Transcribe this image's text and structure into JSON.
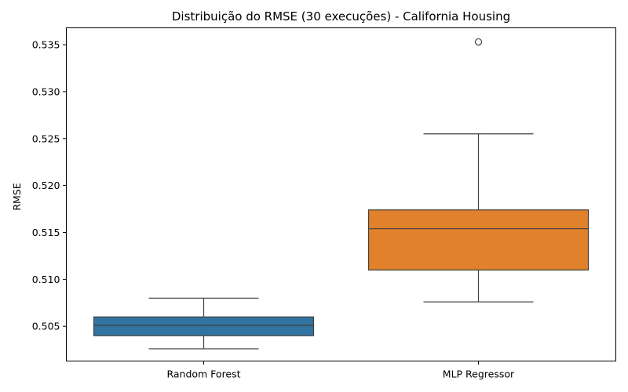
{
  "chart_data": {
    "type": "box",
    "title": "Distribuição do RMSE (30 execuções) - California Housing",
    "xlabel": "",
    "ylabel": "RMSE",
    "ylim": [
      0.5013,
      0.5368
    ],
    "yticks": [
      "0.505",
      "0.510",
      "0.515",
      "0.520",
      "0.525",
      "0.530",
      "0.535"
    ],
    "categories": [
      "Random Forest",
      "MLP Regressor"
    ],
    "boxes": [
      {
        "category": "Random Forest",
        "color": "#3274a1",
        "whisker_low": 0.5026,
        "q1": 0.504,
        "median": 0.5051,
        "q3": 0.506,
        "whisker_high": 0.508,
        "outliers": []
      },
      {
        "category": "MLP Regressor",
        "color": "#e1812c",
        "whisker_low": 0.5076,
        "q1": 0.511,
        "median": 0.5154,
        "q3": 0.5174,
        "whisker_high": 0.5255,
        "outliers": [
          0.5353
        ]
      }
    ],
    "grid": false,
    "legend": "none"
  }
}
